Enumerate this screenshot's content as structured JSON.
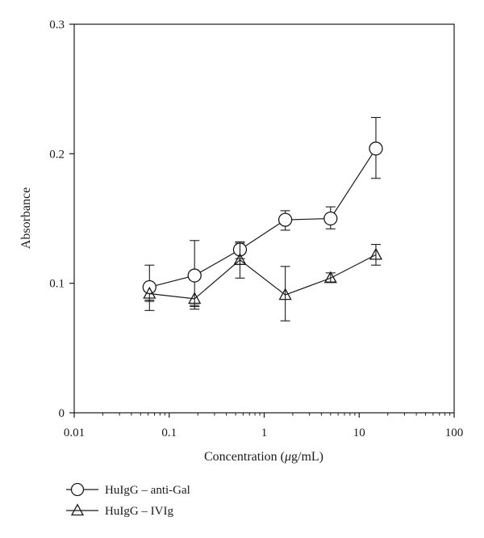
{
  "chart_data": {
    "type": "line",
    "xlabel_prefix": "Concentration (",
    "xlabel_unit_mu": "μ",
    "xlabel_suffix": "g/mL)",
    "ylabel": "Absorbance",
    "x_scale": "log",
    "xlim": [
      0.01,
      100
    ],
    "ylim": [
      0,
      0.3
    ],
    "x_ticks": [
      0.01,
      0.1,
      1,
      10,
      100
    ],
    "x_tick_labels": [
      "0.01",
      "0.1",
      "1",
      "10",
      "100"
    ],
    "y_ticks": [
      0,
      0.1,
      0.2,
      0.3
    ],
    "y_tick_labels": [
      "0",
      "0.1",
      "0.2",
      "0.3"
    ],
    "grid": false,
    "legend_position": "bottom-left",
    "series": [
      {
        "name": "HuIgG – anti-Gal",
        "marker": "circle",
        "x": [
          0.062,
          0.185,
          0.556,
          1.667,
          5.0,
          15.0
        ],
        "y": [
          0.097,
          0.106,
          0.126,
          0.149,
          0.15,
          0.204
        ],
        "err_low": [
          0.079,
          0.082,
          0.119,
          0.141,
          0.142,
          0.181
        ],
        "err_high": [
          0.114,
          0.133,
          0.132,
          0.156,
          0.159,
          0.228
        ]
      },
      {
        "name": "HuIgG – IVIg",
        "marker": "triangle",
        "x": [
          0.062,
          0.185,
          0.556,
          1.667,
          5.0,
          15.0
        ],
        "y": [
          0.092,
          0.088,
          0.118,
          0.091,
          0.104,
          0.122
        ],
        "err_low": [
          0.086,
          0.08,
          0.104,
          0.071,
          0.101,
          0.114
        ],
        "err_high": [
          0.087,
          0.083,
          0.131,
          0.113,
          0.108,
          0.13
        ]
      }
    ]
  }
}
